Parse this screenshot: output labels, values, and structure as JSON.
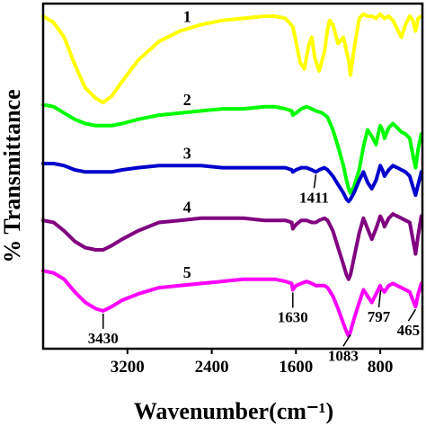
{
  "chart_data": {
    "type": "line",
    "xlabel": "Wavenumber(cm⁻¹)",
    "ylabel": "% Transmittance",
    "xlim": [
      4000,
      400
    ],
    "x_ticks": [
      3200,
      2400,
      1600,
      800
    ],
    "x_tick_labels": [
      "3200",
      "2400",
      "1600",
      "800"
    ],
    "grid": false,
    "legend": "none",
    "series": [
      {
        "name": "1",
        "color": "#ffff00",
        "x": [
          4000,
          3900,
          3800,
          3700,
          3600,
          3500,
          3430,
          3350,
          3250,
          3100,
          2900,
          2700,
          2500,
          2300,
          2100,
          1900,
          1800,
          1700,
          1630,
          1600,
          1560,
          1520,
          1480,
          1450,
          1420,
          1380,
          1330,
          1300,
          1280,
          1250,
          1200,
          1150,
          1100,
          1083,
          1050,
          1000,
          960,
          920,
          880,
          840,
          800,
          760,
          720,
          680,
          640,
          600,
          560,
          520,
          490,
          465,
          440,
          410
        ],
        "y": [
          98,
          95,
          88,
          75,
          64,
          59,
          57,
          60,
          67,
          77,
          86,
          91,
          94,
          96,
          97,
          98,
          98,
          97,
          93,
          86,
          76,
          73,
          84,
          88,
          78,
          72,
          81,
          92,
          96,
          94,
          85,
          88,
          77,
          70,
          82,
          97,
          99,
          98,
          98,
          97,
          99,
          97,
          98,
          96,
          92,
          88,
          94,
          98,
          96,
          91,
          97,
          98
        ]
      },
      {
        "name": "2",
        "color": "#00ff00",
        "x": [
          4000,
          3900,
          3800,
          3700,
          3600,
          3500,
          3430,
          3350,
          3250,
          3100,
          2900,
          2700,
          2500,
          2300,
          2100,
          1900,
          1800,
          1700,
          1640,
          1630,
          1600,
          1550,
          1500,
          1450,
          1411,
          1350,
          1300,
          1250,
          1200,
          1150,
          1120,
          1100,
          1083,
          1050,
          1000,
          960,
          920,
          880,
          840,
          820,
          800,
          780,
          760,
          720,
          680,
          640,
          600,
          560,
          520,
          490,
          465,
          440,
          410
        ],
        "y": [
          56,
          55,
          52,
          49,
          47,
          46,
          46,
          46,
          47,
          49,
          51,
          52,
          53,
          54,
          54,
          55,
          55,
          54,
          53,
          51,
          52,
          54,
          55,
          54,
          53,
          52,
          50,
          44,
          36,
          27,
          20,
          16,
          14,
          17,
          25,
          36,
          44,
          41,
          37,
          42,
          46,
          44,
          40,
          45,
          47,
          45,
          43,
          42,
          40,
          32,
          26,
          35,
          42
        ]
      },
      {
        "name": "3",
        "color": "#0000cc",
        "x": [
          4000,
          3900,
          3800,
          3700,
          3600,
          3500,
          3430,
          3350,
          3250,
          3100,
          2900,
          2700,
          2500,
          2300,
          2100,
          1900,
          1800,
          1700,
          1640,
          1630,
          1600,
          1550,
          1500,
          1450,
          1411,
          1380,
          1330,
          1300,
          1250,
          1200,
          1150,
          1120,
          1100,
          1083,
          1050,
          1000,
          960,
          920,
          880,
          840,
          800,
          780,
          760,
          720,
          680,
          640,
          600,
          560,
          520,
          490,
          465,
          440,
          410
        ],
        "y": [
          28,
          28,
          27,
          25,
          24,
          24,
          24,
          24,
          25,
          26,
          27,
          27,
          27,
          26,
          26,
          26,
          26,
          26,
          25,
          24,
          25,
          26,
          26,
          25,
          24,
          25,
          26,
          25,
          22,
          18,
          14,
          11,
          10,
          11,
          14,
          20,
          24,
          19,
          16,
          20,
          27,
          25,
          22,
          25,
          27,
          26,
          25,
          24,
          22,
          17,
          13,
          18,
          24
        ]
      },
      {
        "name": "4",
        "color": "#800080",
        "x": [
          4000,
          3900,
          3800,
          3700,
          3600,
          3500,
          3430,
          3350,
          3250,
          3100,
          2900,
          2700,
          2500,
          2300,
          2100,
          1900,
          1800,
          1700,
          1640,
          1630,
          1600,
          1550,
          1500,
          1450,
          1411,
          1380,
          1330,
          1300,
          1250,
          1200,
          1150,
          1120,
          1100,
          1083,
          1050,
          1000,
          960,
          920,
          880,
          840,
          800,
          780,
          760,
          720,
          680,
          640,
          600,
          560,
          520,
          490,
          465,
          440,
          410
        ],
        "y": [
          1,
          0,
          -4,
          -9,
          -12,
          -13,
          -13,
          -11,
          -8,
          -4,
          0,
          1,
          2,
          2,
          2,
          1,
          1,
          1,
          0,
          -3,
          -1,
          1,
          1,
          0,
          0,
          1,
          2,
          1,
          -4,
          -12,
          -20,
          -25,
          -27,
          -25,
          -17,
          -5,
          2,
          -3,
          -8,
          -3,
          3,
          1,
          -2,
          2,
          4,
          3,
          2,
          1,
          0,
          -8,
          -15,
          -6,
          3
        ]
      },
      {
        "name": "5",
        "color": "#ff00ff",
        "x": [
          4000,
          3900,
          3800,
          3700,
          3600,
          3500,
          3430,
          3350,
          3250,
          3100,
          2900,
          2700,
          2500,
          2300,
          2100,
          1900,
          1800,
          1700,
          1640,
          1630,
          1600,
          1550,
          1500,
          1450,
          1411,
          1380,
          1330,
          1300,
          1250,
          1200,
          1150,
          1120,
          1100,
          1083,
          1050,
          1000,
          960,
          920,
          880,
          840,
          800,
          797,
          760,
          720,
          680,
          640,
          600,
          560,
          520,
          490,
          465,
          440,
          410
        ],
        "y": [
          -23,
          -24,
          -27,
          -33,
          -38,
          -41,
          -42,
          -40,
          -37,
          -34,
          -31,
          -30,
          -29,
          -28,
          -27,
          -27,
          -27,
          -28,
          -29,
          -32,
          -30,
          -29,
          -28,
          -29,
          -30,
          -30,
          -30,
          -31,
          -35,
          -41,
          -48,
          -52,
          -54,
          -52,
          -46,
          -38,
          -32,
          -35,
          -38,
          -34,
          -30,
          -31,
          -33,
          -30,
          -29,
          -30,
          -31,
          -32,
          -33,
          -37,
          -40,
          -34,
          -29
        ]
      }
    ],
    "annotations": [
      {
        "text": "3430",
        "x": 3430
      },
      {
        "text": "1630",
        "x": 1630
      },
      {
        "text": "1411",
        "x": 1411
      },
      {
        "text": "1083",
        "x": 1083
      },
      {
        "text": "797",
        "x": 797
      },
      {
        "text": "465",
        "x": 465
      }
    ]
  }
}
